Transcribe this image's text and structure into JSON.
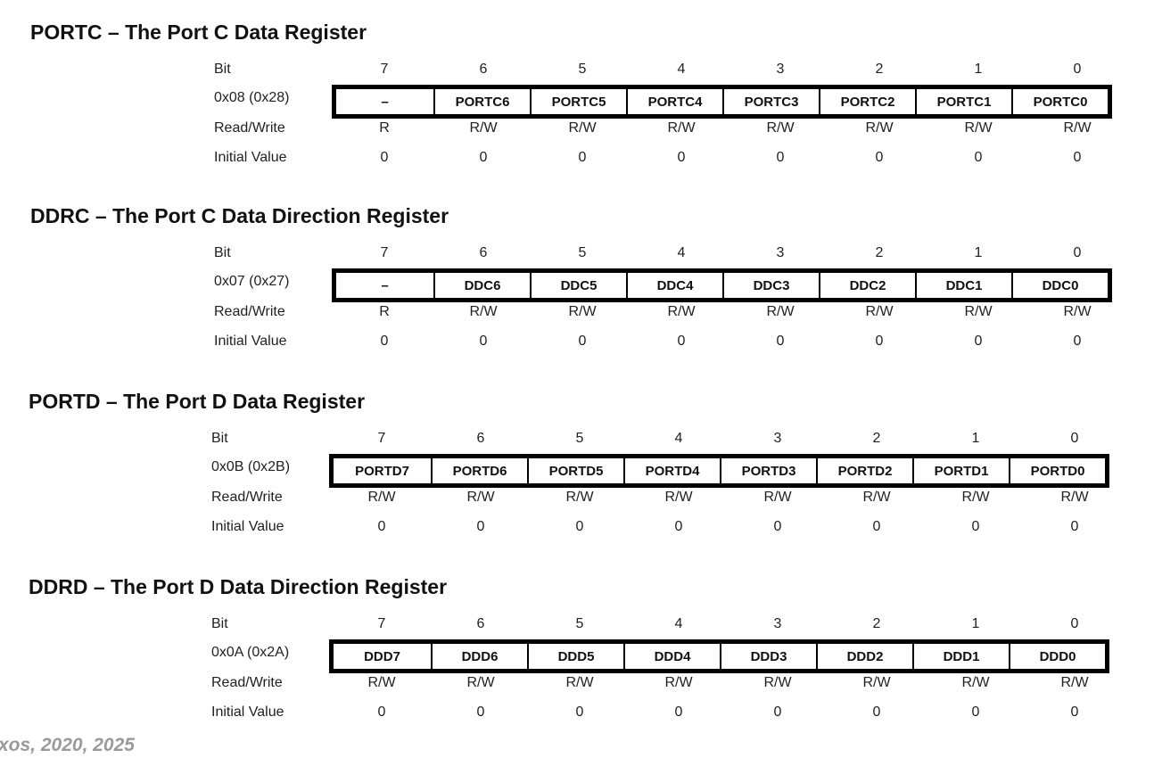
{
  "registers": [
    {
      "title": "PORTC – The Port C Data Register",
      "address": "0x08 (0x28)",
      "bit_label": "Bit",
      "rw_label": "Read/Write",
      "init_label": "Initial Value",
      "bits": [
        "7",
        "6",
        "5",
        "4",
        "3",
        "2",
        "1",
        "0"
      ],
      "names": [
        "–",
        "PORTC6",
        "PORTC5",
        "PORTC4",
        "PORTC3",
        "PORTC2",
        "PORTC1",
        "PORTC0"
      ],
      "rw": [
        "R",
        "R/W",
        "R/W",
        "R/W",
        "R/W",
        "R/W",
        "R/W",
        "R/W"
      ],
      "init": [
        "0",
        "0",
        "0",
        "0",
        "0",
        "0",
        "0",
        "0"
      ]
    },
    {
      "title": "DDRC – The Port C Data Direction Register",
      "address": "0x07 (0x27)",
      "bit_label": "Bit",
      "rw_label": "Read/Write",
      "init_label": "Initial Value",
      "bits": [
        "7",
        "6",
        "5",
        "4",
        "3",
        "2",
        "1",
        "0"
      ],
      "names": [
        "–",
        "DDC6",
        "DDC5",
        "DDC4",
        "DDC3",
        "DDC2",
        "DDC1",
        "DDC0"
      ],
      "rw": [
        "R",
        "R/W",
        "R/W",
        "R/W",
        "R/W",
        "R/W",
        "R/W",
        "R/W"
      ],
      "init": [
        "0",
        "0",
        "0",
        "0",
        "0",
        "0",
        "0",
        "0"
      ]
    },
    {
      "title": "PORTD – The Port D Data Register",
      "address": "0x0B (0x2B)",
      "bit_label": "Bit",
      "rw_label": "Read/Write",
      "init_label": "Initial Value",
      "bits": [
        "7",
        "6",
        "5",
        "4",
        "3",
        "2",
        "1",
        "0"
      ],
      "names": [
        "PORTD7",
        "PORTD6",
        "PORTD5",
        "PORTD4",
        "PORTD3",
        "PORTD2",
        "PORTD1",
        "PORTD0"
      ],
      "rw": [
        "R/W",
        "R/W",
        "R/W",
        "R/W",
        "R/W",
        "R/W",
        "R/W",
        "R/W"
      ],
      "init": [
        "0",
        "0",
        "0",
        "0",
        "0",
        "0",
        "0",
        "0"
      ]
    },
    {
      "title": "DDRD – The Port D Data Direction Register",
      "address": "0x0A (0x2A)",
      "bit_label": "Bit",
      "rw_label": "Read/Write",
      "init_label": "Initial Value",
      "bits": [
        "7",
        "6",
        "5",
        "4",
        "3",
        "2",
        "1",
        "0"
      ],
      "names": [
        "DDD7",
        "DDD6",
        "DDD5",
        "DDD4",
        "DDD3",
        "DDD2",
        "DDD1",
        "DDD0"
      ],
      "rw": [
        "R/W",
        "R/W",
        "R/W",
        "R/W",
        "R/W",
        "R/W",
        "R/W",
        "R/W"
      ],
      "init": [
        "0",
        "0",
        "0",
        "0",
        "0",
        "0",
        "0",
        "0"
      ]
    }
  ],
  "footer": {
    "text": "xos, 2020, 2025"
  }
}
